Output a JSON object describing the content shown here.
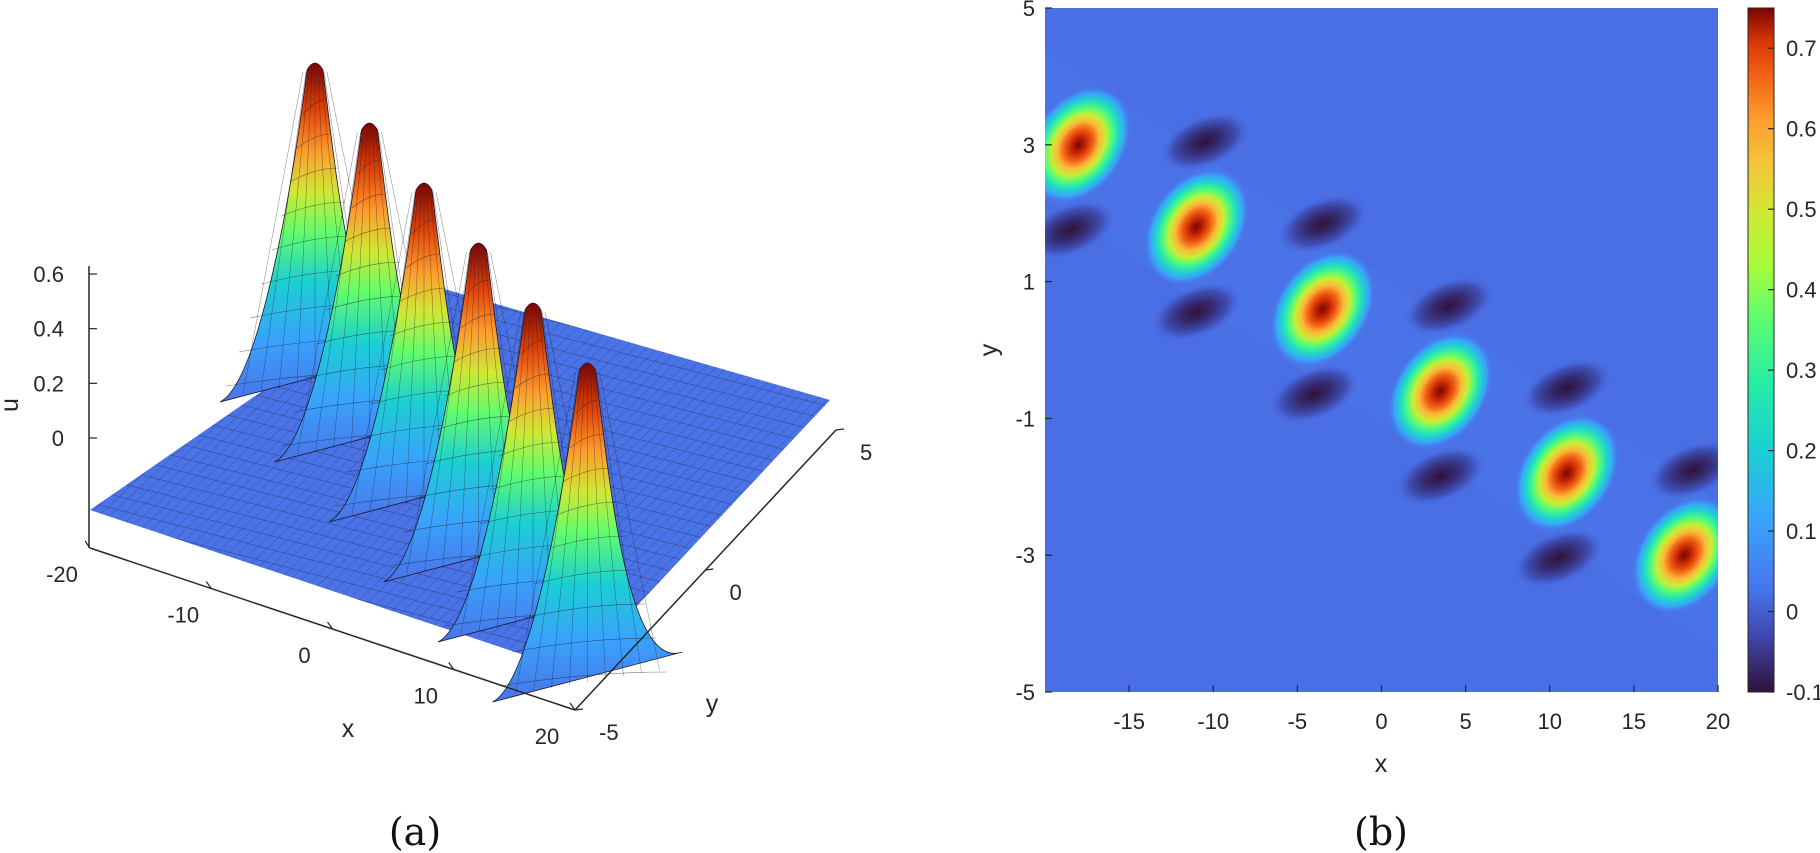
{
  "chart_data": [
    {
      "panel": "(a)",
      "type": "surface3d",
      "xlabel": "x",
      "ylabel": "y",
      "zlabel": "u",
      "xlim": [
        -20,
        20
      ],
      "ylim": [
        -5,
        5
      ],
      "zlim": [
        0,
        0.75
      ],
      "xticks": [
        "-20",
        "-10",
        "0",
        "10",
        "20"
      ],
      "yticks": [
        "-5",
        "0",
        "5"
      ],
      "zticks": [
        "0",
        "0.2",
        "0.4",
        "0.6"
      ],
      "colormap": "turbo",
      "mesh_color": "#000000",
      "peaks": [
        {
          "x": -18,
          "y": 3,
          "u": 0.75
        },
        {
          "x": -11,
          "y": 1.8,
          "u": 0.75
        },
        {
          "x": -3.5,
          "y": 0.6,
          "u": 0.75
        },
        {
          "x": 3.5,
          "y": -0.6,
          "u": 0.75
        },
        {
          "x": 11,
          "y": -1.8,
          "u": 0.75
        },
        {
          "x": 18,
          "y": -3,
          "u": 0.75
        }
      ]
    },
    {
      "panel": "(b)",
      "type": "heatmap",
      "xlabel": "x",
      "ylabel": "y",
      "xlim": [
        -20,
        20
      ],
      "ylim": [
        -5,
        5
      ],
      "xticks": [
        "-15",
        "-10",
        "-5",
        "0",
        "5",
        "10",
        "15",
        "20"
      ],
      "yticks": [
        "-5",
        "-3",
        "-1",
        "1",
        "3",
        "5"
      ],
      "colormap": "turbo",
      "colorbar": {
        "range": [
          -0.1,
          0.75
        ],
        "ticks": [
          "-0.1",
          "0",
          "0.1",
          "0.2",
          "0.3",
          "0.4",
          "0.5",
          "0.6",
          "0.7"
        ]
      },
      "peaks": [
        {
          "x": -18,
          "y": 3,
          "u": 0.75
        },
        {
          "x": -11,
          "y": 1.8,
          "u": 0.75
        },
        {
          "x": -3.5,
          "y": 0.6,
          "u": 0.75
        },
        {
          "x": 3.5,
          "y": -0.6,
          "u": 0.75
        },
        {
          "x": 11,
          "y": -1.8,
          "u": 0.75
        },
        {
          "x": 18,
          "y": -3,
          "u": 0.75
        }
      ],
      "dips_value": -0.1
    }
  ],
  "captions": {
    "a": "(a)",
    "b": "(b)"
  }
}
